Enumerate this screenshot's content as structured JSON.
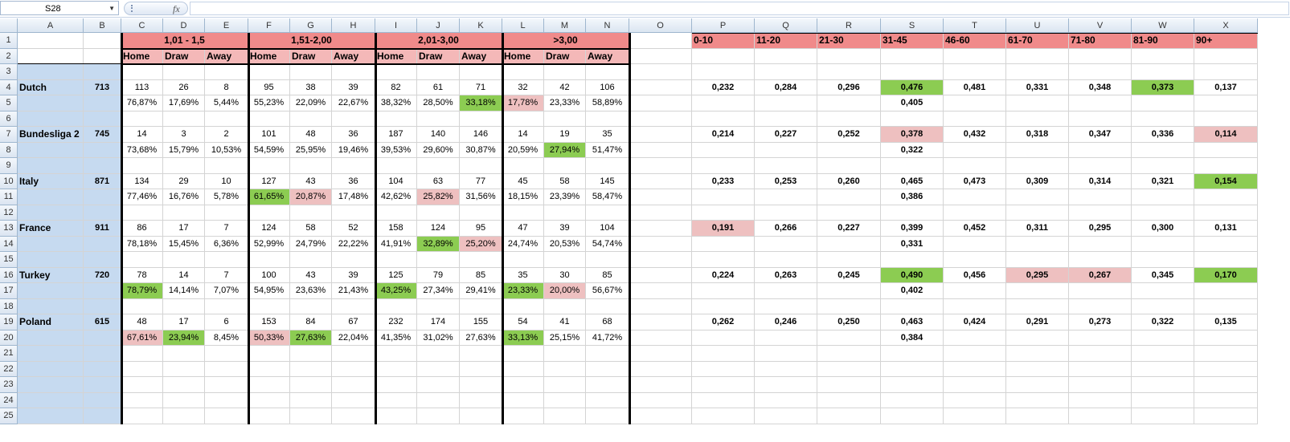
{
  "formula_bar": {
    "name_box": "S28",
    "fx_label": "fx",
    "formula": ""
  },
  "columns": [
    "A",
    "B",
    "C",
    "D",
    "E",
    "F",
    "G",
    "H",
    "I",
    "J",
    "K",
    "L",
    "M",
    "N",
    "O",
    "P",
    "Q",
    "R",
    "S",
    "T",
    "U",
    "V",
    "W",
    "X"
  ],
  "rows": [
    "1",
    "2",
    "3",
    "4",
    "5",
    "6",
    "7",
    "8",
    "9",
    "10",
    "11",
    "12",
    "13",
    "14",
    "15",
    "16",
    "17",
    "18",
    "19",
    "20",
    "21",
    "22",
    "23",
    "24",
    "25"
  ],
  "groups": [
    "1,01 - 1,5",
    "1,51-2,00",
    "2,01-3,00",
    ">3,00"
  ],
  "subheaders": [
    "Home",
    "Draw",
    "Away"
  ],
  "minute_bins": [
    "0-10",
    "11-20",
    "21-30",
    "31-45",
    "46-60",
    "61-70",
    "71-80",
    "81-90",
    "90+"
  ],
  "colors": {
    "green": "#8ccc52",
    "pink": "#eec0c0",
    "header_pink": "#f08a8a",
    "header_light_pink": "#f4b8b8",
    "blue_column": "#c6daf0"
  },
  "leagues": [
    {
      "name": "Dutch",
      "total": "713",
      "counts": [
        "113",
        "26",
        "8",
        "95",
        "38",
        "39",
        "82",
        "61",
        "71",
        "32",
        "42",
        "106"
      ],
      "pcts": [
        "76,87%",
        "17,69%",
        "5,44%",
        "55,23%",
        "22,09%",
        "22,67%",
        "38,32%",
        "28,50%",
        "33,18%",
        "17,78%",
        "23,33%",
        "58,89%"
      ],
      "pct_hl": {
        "8": "g",
        "9": "p"
      },
      "mins": [
        "0,232",
        "0,284",
        "0,296",
        "0,476",
        "0,481",
        "0,331",
        "0,348",
        "0,373",
        "0,137"
      ],
      "min_hl": {
        "3": "g",
        "7": "g"
      },
      "avg": "0,405"
    },
    {
      "name": "Bundesliga 2",
      "total": "745",
      "counts": [
        "14",
        "3",
        "2",
        "101",
        "48",
        "36",
        "187",
        "140",
        "146",
        "14",
        "19",
        "35"
      ],
      "pcts": [
        "73,68%",
        "15,79%",
        "10,53%",
        "54,59%",
        "25,95%",
        "19,46%",
        "39,53%",
        "29,60%",
        "30,87%",
        "20,59%",
        "27,94%",
        "51,47%"
      ],
      "pct_hl": {
        "10": "g"
      },
      "mins": [
        "0,214",
        "0,227",
        "0,252",
        "0,378",
        "0,432",
        "0,318",
        "0,347",
        "0,336",
        "0,114"
      ],
      "min_hl": {
        "3": "p",
        "8": "p"
      },
      "avg": "0,322"
    },
    {
      "name": "Italy",
      "total": "871",
      "counts": [
        "134",
        "29",
        "10",
        "127",
        "43",
        "36",
        "104",
        "63",
        "77",
        "45",
        "58",
        "145"
      ],
      "pcts": [
        "77,46%",
        "16,76%",
        "5,78%",
        "61,65%",
        "20,87%",
        "17,48%",
        "42,62%",
        "25,82%",
        "31,56%",
        "18,15%",
        "23,39%",
        "58,47%"
      ],
      "pct_hl": {
        "3": "g",
        "4": "p",
        "7": "p"
      },
      "mins": [
        "0,233",
        "0,253",
        "0,260",
        "0,465",
        "0,473",
        "0,309",
        "0,314",
        "0,321",
        "0,154"
      ],
      "min_hl": {
        "8": "g"
      },
      "avg": "0,386"
    },
    {
      "name": "France",
      "total": "911",
      "counts": [
        "86",
        "17",
        "7",
        "124",
        "58",
        "52",
        "158",
        "124",
        "95",
        "47",
        "39",
        "104"
      ],
      "pcts": [
        "78,18%",
        "15,45%",
        "6,36%",
        "52,99%",
        "24,79%",
        "22,22%",
        "41,91%",
        "32,89%",
        "25,20%",
        "24,74%",
        "20,53%",
        "54,74%"
      ],
      "pct_hl": {
        "7": "g",
        "8": "p"
      },
      "mins": [
        "0,191",
        "0,266",
        "0,227",
        "0,399",
        "0,452",
        "0,311",
        "0,295",
        "0,300",
        "0,131"
      ],
      "min_hl": {
        "0": "p"
      },
      "avg": "0,331"
    },
    {
      "name": "Turkey",
      "total": "720",
      "counts": [
        "78",
        "14",
        "7",
        "100",
        "43",
        "39",
        "125",
        "79",
        "85",
        "35",
        "30",
        "85"
      ],
      "pcts": [
        "78,79%",
        "14,14%",
        "7,07%",
        "54,95%",
        "23,63%",
        "21,43%",
        "43,25%",
        "27,34%",
        "29,41%",
        "23,33%",
        "20,00%",
        "56,67%"
      ],
      "pct_hl": {
        "0": "g",
        "6": "g",
        "9": "g",
        "10": "p"
      },
      "mins": [
        "0,224",
        "0,263",
        "0,245",
        "0,490",
        "0,456",
        "0,295",
        "0,267",
        "0,345",
        "0,170"
      ],
      "min_hl": {
        "3": "g",
        "5": "p",
        "6": "p",
        "8": "g"
      },
      "avg": "0,402"
    },
    {
      "name": "Poland",
      "total": "615",
      "counts": [
        "48",
        "17",
        "6",
        "153",
        "84",
        "67",
        "232",
        "174",
        "155",
        "54",
        "41",
        "68"
      ],
      "pcts": [
        "67,61%",
        "23,94%",
        "8,45%",
        "50,33%",
        "27,63%",
        "22,04%",
        "41,35%",
        "31,02%",
        "27,63%",
        "33,13%",
        "25,15%",
        "41,72%"
      ],
      "pct_hl": {
        "0": "p",
        "1": "g",
        "3": "p",
        "4": "g",
        "9": "g"
      },
      "mins": [
        "0,262",
        "0,246",
        "0,250",
        "0,463",
        "0,424",
        "0,291",
        "0,273",
        "0,322",
        "0,135"
      ],
      "min_hl": {},
      "avg": "0,384"
    }
  ]
}
